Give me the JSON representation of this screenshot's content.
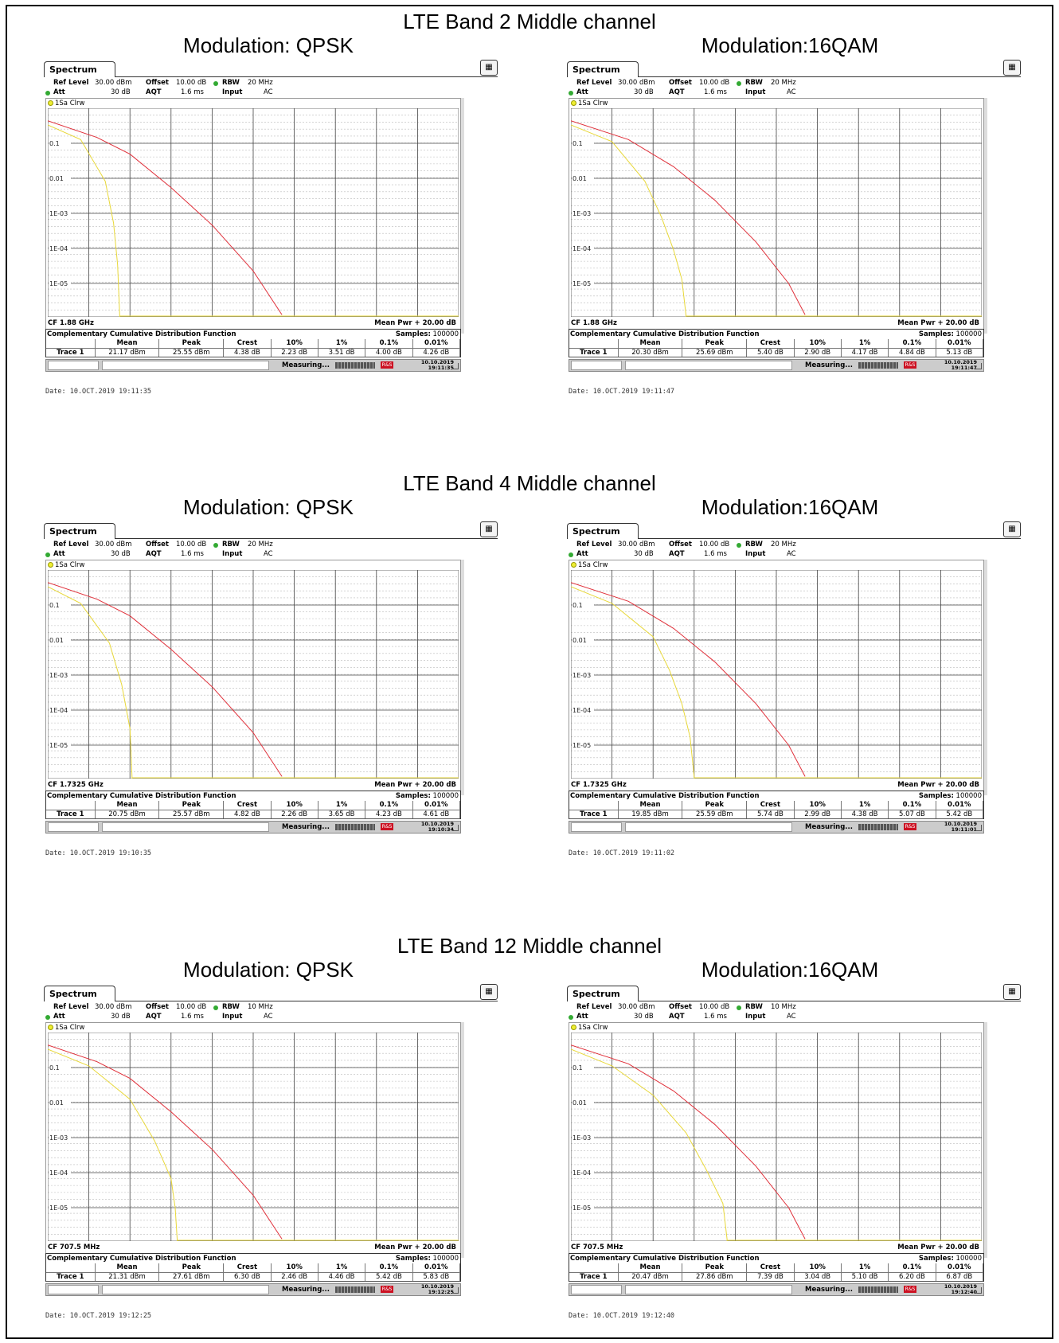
{
  "bands": [
    {
      "title": "LTE Band 2 Middle channel",
      "panels": [
        {
          "modulation": "Modulation: QPSK",
          "tab": "Spectrum",
          "ref_level_label": "Ref Level",
          "ref_level": "30.00 dBm",
          "offset_label": "Offset",
          "offset": "10.00 dB",
          "rbw_label": "RBW",
          "rbw": "20 MHz",
          "att_label": "Att",
          "att": "30 dB",
          "aqt_label": "AQT",
          "aqt": "1.6 ms",
          "input_label": "Input",
          "input": "AC",
          "trace_label": "1Sa Clrw",
          "y_ticks": [
            "0.1",
            "0.01",
            "1E-03",
            "1E-04",
            "1E-05"
          ],
          "cf": "CF 1.88 GHz",
          "mean_pwr": "Mean Pwr + 20.00 dB",
          "ccdf_title": "Complementary Cumulative Distribution Function",
          "samples_label": "Samples:",
          "samples": "100000",
          "headers": [
            "",
            "Mean",
            "Peak",
            "Crest",
            "10%",
            "1%",
            "0.1%",
            "0.01%"
          ],
          "trace_name": "Trace 1",
          "values": [
            "21.17 dBm",
            "25.55 dBm",
            "4.38 dB",
            "2.23 dB",
            "3.51 dB",
            "4.00 dB",
            "4.26 dB"
          ],
          "status": "Measuring...",
          "status_date": "10.10.2019",
          "status_time": "19:11:35",
          "date": "Date: 10.OCT.2019  19:11:35",
          "curve_yellow": [
            [
              0.0,
              0.08
            ],
            [
              0.08,
              0.15
            ],
            [
              0.14,
              0.35
            ],
            [
              0.16,
              0.55
            ],
            [
              0.17,
              0.75
            ],
            [
              0.175,
              0.99
            ],
            [
              0.175,
              1.0
            ]
          ],
          "curve_red": [
            [
              0.0,
              0.06
            ],
            [
              0.12,
              0.14
            ],
            [
              0.2,
              0.22
            ],
            [
              0.3,
              0.38
            ],
            [
              0.4,
              0.56
            ],
            [
              0.5,
              0.78
            ],
            [
              0.57,
              0.99
            ]
          ]
        },
        {
          "modulation": "Modulation:16QAM",
          "tab": "Spectrum",
          "ref_level_label": "Ref Level",
          "ref_level": "30.00 dBm",
          "offset_label": "Offset",
          "offset": "10.00 dB",
          "rbw_label": "RBW",
          "rbw": "20 MHz",
          "att_label": "Att",
          "att": "30 dB",
          "aqt_label": "AQT",
          "aqt": "1.6 ms",
          "input_label": "Input",
          "input": "AC",
          "trace_label": "1Sa Clrw",
          "y_ticks": [
            "0.1",
            "0.01",
            "1E-03",
            "1E-04",
            "1E-05"
          ],
          "cf": "CF 1.88 GHz",
          "mean_pwr": "Mean Pwr + 20.00 dB",
          "ccdf_title": "Complementary Cumulative Distribution Function",
          "samples_label": "Samples:",
          "samples": "100000",
          "headers": [
            "",
            "Mean",
            "Peak",
            "Crest",
            "10%",
            "1%",
            "0.1%",
            "0.01%"
          ],
          "trace_name": "Trace 1",
          "values": [
            "20.30 dBm",
            "25.69 dBm",
            "5.40 dB",
            "2.90 dB",
            "4.17 dB",
            "4.84 dB",
            "5.13 dB"
          ],
          "status": "Measuring...",
          "status_date": "10.10.2019",
          "status_time": "19:11:47",
          "date": "Date: 10.OCT.2019  19:11:47",
          "curve_yellow": [
            [
              0.0,
              0.08
            ],
            [
              0.1,
              0.16
            ],
            [
              0.18,
              0.35
            ],
            [
              0.22,
              0.52
            ],
            [
              0.25,
              0.68
            ],
            [
              0.27,
              0.82
            ],
            [
              0.28,
              0.99
            ],
            [
              0.28,
              1.0
            ]
          ],
          "curve_red": [
            [
              0.0,
              0.06
            ],
            [
              0.14,
              0.15
            ],
            [
              0.25,
              0.28
            ],
            [
              0.35,
              0.44
            ],
            [
              0.45,
              0.64
            ],
            [
              0.53,
              0.84
            ],
            [
              0.57,
              0.99
            ]
          ]
        }
      ]
    },
    {
      "title": "LTE Band 4 Middle channel",
      "panels": [
        {
          "modulation": "Modulation: QPSK",
          "tab": "Spectrum",
          "ref_level_label": "Ref Level",
          "ref_level": "30.00 dBm",
          "offset_label": "Offset",
          "offset": "10.00 dB",
          "rbw_label": "RBW",
          "rbw": "20 MHz",
          "att_label": "Att",
          "att": "30 dB",
          "aqt_label": "AQT",
          "aqt": "1.6 ms",
          "input_label": "Input",
          "input": "AC",
          "trace_label": "1Sa Clrw",
          "y_ticks": [
            "0.1",
            "0.01",
            "1E-03",
            "1E-04",
            "1E-05"
          ],
          "cf": "CF 1.7325 GHz",
          "mean_pwr": "Mean Pwr + 20.00 dB",
          "ccdf_title": "Complementary Cumulative Distribution Function",
          "samples_label": "Samples:",
          "samples": "100000",
          "headers": [
            "",
            "Mean",
            "Peak",
            "Crest",
            "10%",
            "1%",
            "0.1%",
            "0.01%"
          ],
          "trace_name": "Trace 1",
          "values": [
            "20.75 dBm",
            "25.57 dBm",
            "4.82 dB",
            "2.26 dB",
            "3.65 dB",
            "4.23 dB",
            "4.61 dB"
          ],
          "status": "Measuring...",
          "status_date": "10.10.2019",
          "status_time": "19:10:34",
          "date": "Date: 10.OCT.2019  19:10:35",
          "curve_yellow": [
            [
              0.0,
              0.08
            ],
            [
              0.08,
              0.16
            ],
            [
              0.15,
              0.35
            ],
            [
              0.18,
              0.55
            ],
            [
              0.2,
              0.76
            ],
            [
              0.205,
              0.99
            ],
            [
              0.205,
              1.0
            ]
          ],
          "curve_red": [
            [
              0.0,
              0.06
            ],
            [
              0.12,
              0.14
            ],
            [
              0.2,
              0.22
            ],
            [
              0.3,
              0.38
            ],
            [
              0.4,
              0.56
            ],
            [
              0.5,
              0.78
            ],
            [
              0.57,
              0.99
            ]
          ]
        },
        {
          "modulation": "Modulation:16QAM",
          "tab": "Spectrum",
          "ref_level_label": "Ref Level",
          "ref_level": "30.00 dBm",
          "offset_label": "Offset",
          "offset": "10.00 dB",
          "rbw_label": "RBW",
          "rbw": "20 MHz",
          "att_label": "Att",
          "att": "30 dB",
          "aqt_label": "AQT",
          "aqt": "1.6 ms",
          "input_label": "Input",
          "input": "AC",
          "trace_label": "1Sa Clrw",
          "y_ticks": [
            "0.1",
            "0.01",
            "1E-03",
            "1E-04",
            "1E-05"
          ],
          "cf": "CF 1.7325 GHz",
          "mean_pwr": "Mean Pwr + 20.00 dB",
          "ccdf_title": "Complementary Cumulative Distribution Function",
          "samples_label": "Samples:",
          "samples": "100000",
          "headers": [
            "",
            "Mean",
            "Peak",
            "Crest",
            "10%",
            "1%",
            "0.1%",
            "0.01%"
          ],
          "trace_name": "Trace 1",
          "values": [
            "19.85 dBm",
            "25.59 dBm",
            "5.74 dB",
            "2.99 dB",
            "4.38 dB",
            "5.07 dB",
            "5.42 dB"
          ],
          "status": "Measuring...",
          "status_date": "10.10.2019",
          "status_time": "19:11:01",
          "date": "Date: 10.OCT.2019  19:11:02",
          "curve_yellow": [
            [
              0.0,
              0.08
            ],
            [
              0.1,
              0.16
            ],
            [
              0.2,
              0.32
            ],
            [
              0.24,
              0.48
            ],
            [
              0.27,
              0.64
            ],
            [
              0.29,
              0.8
            ],
            [
              0.3,
              0.99
            ],
            [
              0.3,
              1.0
            ]
          ],
          "curve_red": [
            [
              0.0,
              0.06
            ],
            [
              0.14,
              0.15
            ],
            [
              0.25,
              0.28
            ],
            [
              0.35,
              0.44
            ],
            [
              0.45,
              0.64
            ],
            [
              0.53,
              0.84
            ],
            [
              0.57,
              0.99
            ]
          ]
        }
      ]
    },
    {
      "title": "LTE Band 12 Middle channel",
      "panels": [
        {
          "modulation": "Modulation: QPSK",
          "tab": "Spectrum",
          "ref_level_label": "Ref Level",
          "ref_level": "30.00 dBm",
          "offset_label": "Offset",
          "offset": "10.00 dB",
          "rbw_label": "RBW",
          "rbw": "10 MHz",
          "att_label": "Att",
          "att": "30 dB",
          "aqt_label": "AQT",
          "aqt": "1.6 ms",
          "input_label": "Input",
          "input": "AC",
          "trace_label": "1Sa Clrw",
          "y_ticks": [
            "0.1",
            "0.01",
            "1E-03",
            "1E-04",
            "1E-05"
          ],
          "cf": "CF 707.5 MHz",
          "mean_pwr": "Mean Pwr + 20.00 dB",
          "ccdf_title": "Complementary Cumulative Distribution Function",
          "samples_label": "Samples:",
          "samples": "100000",
          "headers": [
            "",
            "Mean",
            "Peak",
            "Crest",
            "10%",
            "1%",
            "0.1%",
            "0.01%"
          ],
          "trace_name": "Trace 1",
          "values": [
            "21.31 dBm",
            "27.61 dBm",
            "6.30 dB",
            "2.46 dB",
            "4.46 dB",
            "5.42 dB",
            "5.83 dB"
          ],
          "status": "Measuring...",
          "status_date": "10.10.2019",
          "status_time": "19:12:25",
          "date": "Date: 10.OCT.2019  19:12:25",
          "curve_yellow": [
            [
              0.0,
              0.08
            ],
            [
              0.1,
              0.16
            ],
            [
              0.2,
              0.32
            ],
            [
              0.26,
              0.52
            ],
            [
              0.3,
              0.7
            ],
            [
              0.31,
              0.84
            ],
            [
              0.315,
              0.99
            ],
            [
              0.315,
              1.0
            ]
          ],
          "curve_red": [
            [
              0.0,
              0.06
            ],
            [
              0.12,
              0.14
            ],
            [
              0.2,
              0.22
            ],
            [
              0.3,
              0.38
            ],
            [
              0.4,
              0.56
            ],
            [
              0.5,
              0.78
            ],
            [
              0.57,
              0.99
            ]
          ]
        },
        {
          "modulation": "Modulation:16QAM",
          "tab": "Spectrum",
          "ref_level_label": "Ref Level",
          "ref_level": "30.00 dBm",
          "offset_label": "Offset",
          "offset": "10.00 dB",
          "rbw_label": "RBW",
          "rbw": "10 MHz",
          "att_label": "Att",
          "att": "30 dB",
          "aqt_label": "AQT",
          "aqt": "1.6 ms",
          "input_label": "Input",
          "input": "AC",
          "trace_label": "1Sa Clrw",
          "y_ticks": [
            "0.1",
            "0.01",
            "1E-03",
            "1E-04",
            "1E-05"
          ],
          "cf": "CF 707.5 MHz",
          "mean_pwr": "Mean Pwr + 20.00 dB",
          "ccdf_title": "Complementary Cumulative Distribution Function",
          "samples_label": "Samples:",
          "samples": "100000",
          "headers": [
            "",
            "Mean",
            "Peak",
            "Crest",
            "10%",
            "1%",
            "0.1%",
            "0.01%"
          ],
          "trace_name": "Trace 1",
          "values": [
            "20.47 dBm",
            "27.86 dBm",
            "7.39 dB",
            "3.04 dB",
            "5.10 dB",
            "6.20 dB",
            "6.87 dB"
          ],
          "status": "Measuring...",
          "status_date": "10.10.2019",
          "status_time": "19:12:40",
          "date": "Date: 10.OCT.2019  19:12:40",
          "curve_yellow": [
            [
              0.0,
              0.08
            ],
            [
              0.1,
              0.16
            ],
            [
              0.2,
              0.3
            ],
            [
              0.28,
              0.48
            ],
            [
              0.33,
              0.66
            ],
            [
              0.37,
              0.82
            ],
            [
              0.38,
              0.99
            ],
            [
              0.38,
              1.0
            ]
          ],
          "curve_red": [
            [
              0.0,
              0.06
            ],
            [
              0.14,
              0.15
            ],
            [
              0.25,
              0.28
            ],
            [
              0.35,
              0.44
            ],
            [
              0.45,
              0.64
            ],
            [
              0.53,
              0.84
            ],
            [
              0.57,
              0.99
            ]
          ]
        }
      ]
    }
  ],
  "colors": {
    "trace_yellow": "#e8d83a",
    "trace_red": "#e0303a",
    "grid": "#444444",
    "grid_minor": "#bbbbbb"
  },
  "icons": {
    "menu": "menu-icon",
    "status_logo": "rs-logo-icon"
  }
}
